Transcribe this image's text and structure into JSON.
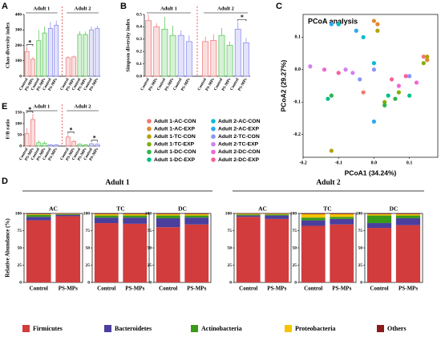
{
  "chart_data": [
    {
      "type": "bar",
      "label": "A",
      "ylabel": "Chao diversity index",
      "ylim": [
        0,
        400
      ],
      "yticks": [
        0,
        100,
        200,
        300,
        400
      ],
      "groups": [
        "Adult 1",
        "Adult 2"
      ],
      "categories": [
        "Control",
        "PS-MPs",
        "Control",
        "PS-MPs",
        "Control",
        "PS-MPs",
        "Control",
        "PS-MPs",
        "Control",
        "PS-MPs",
        "Control",
        "PS-MPs"
      ],
      "values": [
        160,
        110,
        230,
        280,
        310,
        330,
        120,
        125,
        270,
        270,
        300,
        310
      ],
      "errors": [
        30,
        15,
        70,
        40,
        40,
        30,
        10,
        10,
        20,
        20,
        20,
        15
      ],
      "colors": [
        "#f08080",
        "#5fc85f",
        "#8f8ff0"
      ],
      "annotations": [
        "*"
      ]
    },
    {
      "type": "bar",
      "label": "B",
      "ylabel": "Simpson diversity index",
      "ylim": [
        0,
        0.5
      ],
      "yticks": [
        {
          "value": 0,
          "label": "0.0"
        },
        0.1,
        0.2,
        0.3,
        0.4,
        0.5
      ],
      "groups": [
        "Adult 1",
        "Adult 2"
      ],
      "categories": [
        "Control",
        "PS-MPs",
        "Control",
        "PS-MPs",
        "Control",
        "PS-MPs",
        "Control",
        "PS-MPs",
        "Control",
        "PS-MPs",
        "Control",
        "PS-MPs"
      ],
      "values": [
        0.45,
        0.4,
        0.38,
        0.33,
        0.33,
        0.28,
        0.28,
        0.29,
        0.33,
        0.25,
        0.38,
        0.27
      ],
      "errors": [
        0.05,
        0.03,
        0.1,
        0.08,
        0.04,
        0.05,
        0.04,
        0.05,
        0.06,
        0.03,
        0.06,
        0.04
      ],
      "colors": [
        "#f08080",
        "#5fc85f",
        "#8f8ff0"
      ],
      "annotations": [
        "*"
      ]
    },
    {
      "type": "bar",
      "label": "E",
      "ylabel": "F/B ratio",
      "ylim": [
        0,
        150
      ],
      "yticks": [
        0,
        50,
        100,
        150
      ],
      "groups": [
        "Adult 1",
        "Adult 2"
      ],
      "categories": [
        "Control",
        "PS-MPs",
        "Control",
        "PS-MPs",
        "Control",
        "PS-MPs",
        "Control",
        "PS-MPs",
        "Control",
        "PS-MPs",
        "Control",
        "PS-MPs"
      ],
      "values": [
        55,
        118,
        15,
        12,
        5,
        5,
        40,
        20,
        8,
        5,
        10,
        8
      ],
      "errors": [
        25,
        25,
        10,
        8,
        3,
        3,
        12,
        8,
        4,
        3,
        5,
        4
      ],
      "colors": [
        "#f08080",
        "#5fc85f",
        "#8f8ff0"
      ],
      "annotations": [
        "*",
        "*",
        "*"
      ]
    },
    {
      "type": "scatter",
      "label": "C",
      "title": "PCoA analysis",
      "xlabel": "PCoA1 (34.24%)",
      "ylabel": "PCoA2 (29.27%)",
      "xlim": [
        -0.2,
        0.18
      ],
      "xticks": [
        -0.2,
        -0.1,
        {
          "value": 0,
          "label": "0.0"
        },
        0.1
      ],
      "ylim": [
        -0.27,
        0.17
      ],
      "yticks": [
        -0.2,
        -0.1,
        {
          "value": 0,
          "label": "0.0"
        },
        0.1
      ],
      "series": [
        {
          "name": "Adult 1-AC-CON",
          "color": "#f4776e",
          "x": [
            0.15,
            0.14,
            -0.03
          ],
          "y": [
            0.03,
            0.04,
            -0.07
          ]
        },
        {
          "name": "Adult 1-AC-EXP",
          "color": "#e08b2e",
          "x": [
            0.0,
            0.01,
            0.15
          ],
          "y": [
            0.15,
            0.14,
            0.03
          ]
        },
        {
          "name": "Adult 1-TC-CON",
          "color": "#b3a200",
          "x": [
            0.01,
            0.15,
            -0.12
          ],
          "y": [
            0.12,
            0.04,
            -0.25
          ]
        },
        {
          "name": "Adult 1-TC-EXP",
          "color": "#7fb000",
          "x": [
            0.03,
            0.07,
            0.14
          ],
          "y": [
            -0.1,
            -0.07,
            0.02
          ]
        },
        {
          "name": "Adult 1-DC-CON",
          "color": "#2bb54a",
          "x": [
            -0.12,
            0.03,
            0.06
          ],
          "y": [
            -0.08,
            -0.11,
            -0.09
          ]
        },
        {
          "name": "Adult 1-DC-EXP",
          "color": "#00bf8a",
          "x": [
            -0.13,
            0.04,
            0.1
          ],
          "y": [
            -0.09,
            -0.08,
            -0.08
          ]
        },
        {
          "name": "Adult 2-AC-CON",
          "color": "#00bcd0",
          "x": [
            -0.1,
            -0.03,
            0.0
          ],
          "y": [
            0.14,
            0.1,
            0.02
          ]
        },
        {
          "name": "Adult 2-AC-EXP",
          "color": "#2fa8f0",
          "x": [
            -0.12,
            -0.05,
            0.0
          ],
          "y": [
            0.14,
            0.12,
            -0.16
          ]
        },
        {
          "name": "Adult 2-TC-CON",
          "color": "#8b95f5",
          "x": [
            -0.04,
            0.0,
            0.1
          ],
          "y": [
            -0.03,
            0.0,
            -0.02
          ]
        },
        {
          "name": "Adult 2-TC-EXP",
          "color": "#d080f0",
          "x": [
            -0.18,
            -0.08,
            -0.06
          ],
          "y": [
            0.01,
            0.0,
            -0.01
          ]
        },
        {
          "name": "Adult 2-DC-CON",
          "color": "#f067d4",
          "x": [
            -0.14,
            0.07,
            0.12
          ],
          "y": [
            0.0,
            -0.05,
            -0.04
          ]
        },
        {
          "name": "Adult 2-DC-EXP",
          "color": "#f75f9c",
          "x": [
            -0.1,
            0.05,
            0.09
          ],
          "y": [
            -0.01,
            -0.03,
            -0.02
          ]
        }
      ]
    },
    {
      "type": "stacked_bar",
      "label": "D",
      "ylabel": "Relative Abundance (%)",
      "ylim": [
        0,
        100
      ],
      "yticks": [
        0,
        25,
        50,
        75,
        100
      ],
      "series": [
        {
          "name": "Firmicutes",
          "color": "#d23c3c"
        },
        {
          "name": "Bacteroidetes",
          "color": "#4b3f9e"
        },
        {
          "name": "Actinobacteria",
          "color": "#3a9a1a"
        },
        {
          "name": "Proteobacteria",
          "color": "#f5c400"
        },
        {
          "name": "Others",
          "color": "#8b1a1a"
        }
      ],
      "groups": [
        {
          "name": "Adult 1",
          "panels": [
            {
              "title": "AC",
              "categories": [
                "Control",
                "PS-MPs"
              ],
              "values": [
                [
                  90,
                  96
                ],
                [
                  5,
                  2
                ],
                [
                  3,
                  1
                ],
                [
                  1,
                  0.5
                ],
                [
                  1,
                  0.5
                ]
              ]
            },
            {
              "title": "TC",
              "categories": [
                "Control",
                "PS-MPs"
              ],
              "values": [
                [
                  86,
                  85
                ],
                [
                  8,
                  9
                ],
                [
                  3,
                  3
                ],
                [
                  2,
                  2
                ],
                [
                  1,
                  1
                ]
              ]
            },
            {
              "title": "DC",
              "categories": [
                "Control",
                "PS-MPs"
              ],
              "values": [
                [
                  80,
                  84
                ],
                [
                  13,
                  10
                ],
                [
                  4,
                  3
                ],
                [
                  2,
                  2
                ],
                [
                  1,
                  1
                ]
              ]
            }
          ]
        },
        {
          "name": "Adult 2",
          "panels": [
            {
              "title": "AC",
              "categories": [
                "Control",
                "PS-MPs"
              ],
              "values": [
                [
                  95,
                  92
                ],
                [
                  2,
                  5
                ],
                [
                  1.5,
                  1.5
                ],
                [
                  1,
                  1
                ],
                [
                  0.5,
                  0.5
                ]
              ]
            },
            {
              "title": "TC",
              "categories": [
                "Control",
                "PS-MPs"
              ],
              "values": [
                [
                  82,
                  84
                ],
                [
                  8,
                  8
                ],
                [
                  4,
                  3
                ],
                [
                  5,
                  4
                ],
                [
                  1,
                  1
                ]
              ]
            },
            {
              "title": "DC",
              "categories": [
                "Control",
                "PS-MPs"
              ],
              "values": [
                [
                  79,
                  83
                ],
                [
                  7,
                  10
                ],
                [
                  11,
                  4
                ],
                [
                  2,
                  2
                ],
                [
                  1,
                  1
                ]
              ]
            }
          ]
        }
      ]
    }
  ]
}
